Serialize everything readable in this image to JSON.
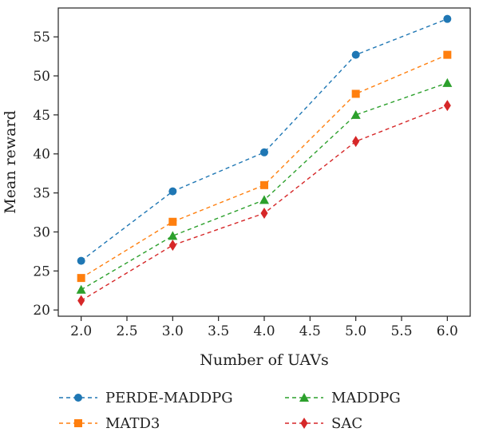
{
  "chart_data": {
    "type": "line",
    "title": "",
    "xlabel": "Number of UAVs",
    "ylabel": "Mean reward",
    "xlim": [
      1.75,
      6.25
    ],
    "ylim": [
      19.2,
      58.7
    ],
    "x_ticks": [
      2.0,
      2.5,
      3.0,
      3.5,
      4.0,
      4.5,
      5.0,
      5.5,
      6.0
    ],
    "x_tick_labels": [
      "2.0",
      "2.5",
      "3.0",
      "3.5",
      "4.0",
      "4.5",
      "5.0",
      "5.5",
      "6.0"
    ],
    "y_ticks": [
      20,
      25,
      30,
      35,
      40,
      45,
      50,
      55
    ],
    "y_tick_labels": [
      "20",
      "25",
      "30",
      "35",
      "40",
      "45",
      "50",
      "55"
    ],
    "grid": false,
    "legend_position": "bottom",
    "x": [
      2.0,
      3.0,
      4.0,
      5.0,
      6.0
    ],
    "series": [
      {
        "name": "PERDE-MADDPG",
        "values": [
          26.3,
          35.2,
          40.2,
          52.7,
          57.3
        ],
        "color": "#1f77b4",
        "marker": "circle",
        "line_style": "dashed"
      },
      {
        "name": "MATD3",
        "values": [
          24.1,
          31.3,
          36.0,
          47.7,
          52.7
        ],
        "color": "#ff7f0e",
        "marker": "square",
        "line_style": "dashed"
      },
      {
        "name": "MADDPG",
        "values": [
          22.6,
          29.5,
          34.1,
          45.0,
          49.1
        ],
        "color": "#2ca02c",
        "marker": "triangle",
        "line_style": "dashed"
      },
      {
        "name": "SAC",
        "values": [
          21.2,
          28.3,
          32.4,
          41.6,
          46.2
        ],
        "color": "#d62728",
        "marker": "diamond",
        "line_style": "dashed"
      }
    ]
  }
}
